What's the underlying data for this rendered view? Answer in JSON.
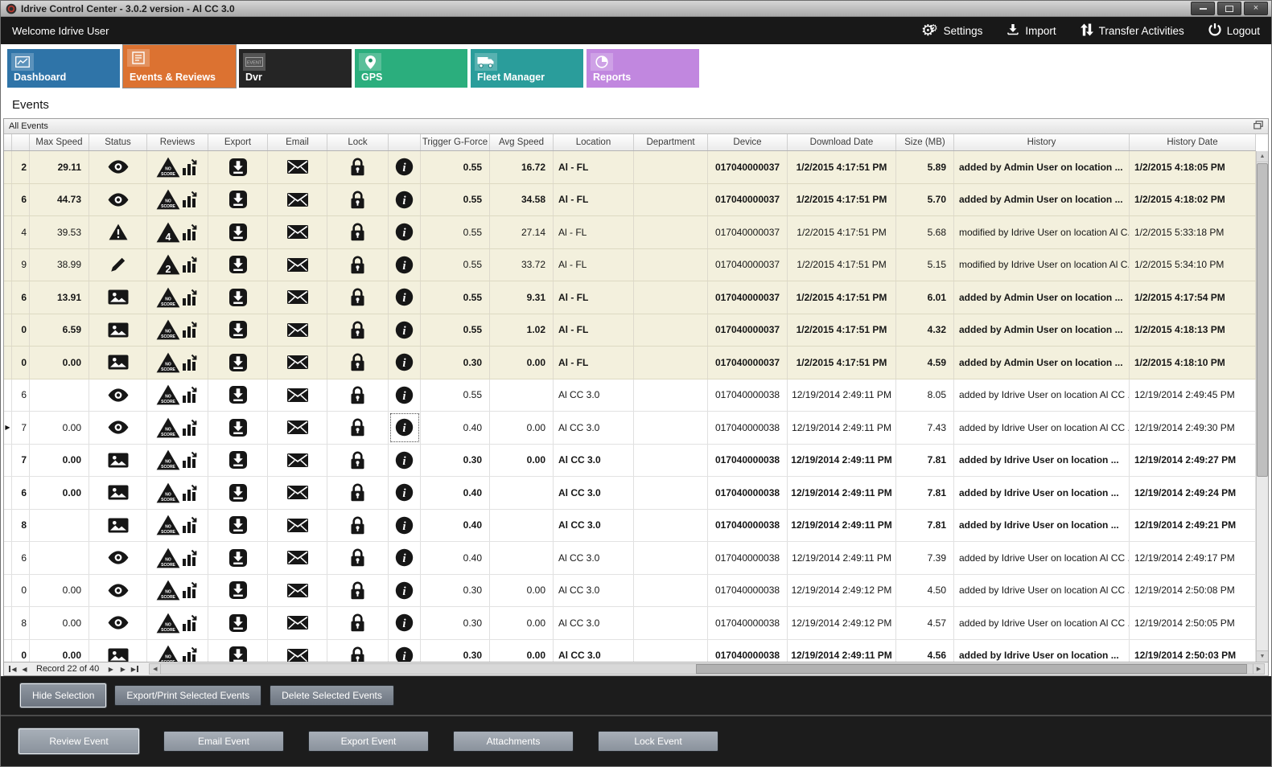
{
  "window": {
    "title": "Idrive Control Center - 3.0.2 version - Al CC 3.0"
  },
  "appbar": {
    "welcome": "Welcome Idrive User",
    "actions": [
      {
        "label": "Settings",
        "icon": "gear-icon"
      },
      {
        "label": "Import",
        "icon": "import-icon"
      },
      {
        "label": "Transfer Activities",
        "icon": "transfer-arrows-icon"
      },
      {
        "label": "Logout",
        "icon": "power-icon"
      }
    ]
  },
  "tabs": [
    {
      "label": "Dashboard",
      "color": "#2f74a8",
      "selected": false,
      "icon": "line-chart-icon"
    },
    {
      "label": "Events & Reviews",
      "color": "#dc7231",
      "selected": true,
      "icon": "event-list-icon"
    },
    {
      "label": "Dvr",
      "color": "#252525",
      "selected": false,
      "icon": "dvr-event-icon"
    },
    {
      "label": "GPS",
      "color": "#2bae7d",
      "selected": false,
      "icon": "map-pin-icon"
    },
    {
      "label": "Fleet Manager",
      "color": "#2a9d9b",
      "selected": false,
      "icon": "truck-icon"
    },
    {
      "label": "Reports",
      "color": "#c187df",
      "selected": false,
      "icon": "pie-chart-icon"
    }
  ],
  "section_title": "Events",
  "panel": {
    "title": "All Events"
  },
  "grid": {
    "row_tint_color": "#f3f0dd",
    "columns": [
      {
        "key": "",
        "label": ""
      },
      {
        "key": "",
        "label": ""
      },
      {
        "key": "max_speed",
        "label": "Max Speed"
      },
      {
        "key": "status",
        "label": "Status"
      },
      {
        "key": "reviews",
        "label": "Reviews"
      },
      {
        "key": "export",
        "label": "Export"
      },
      {
        "key": "email",
        "label": "Email"
      },
      {
        "key": "lock",
        "label": "Lock"
      },
      {
        "key": "info",
        "label": ""
      },
      {
        "key": "trigger_g_force",
        "label": "Trigger G-Force"
      },
      {
        "key": "avg_speed",
        "label": "Avg Speed"
      },
      {
        "key": "location",
        "label": "Location"
      },
      {
        "key": "department",
        "label": "Department"
      },
      {
        "key": "device",
        "label": "Device"
      },
      {
        "key": "download_date",
        "label": "Download Date"
      },
      {
        "key": "size_mb",
        "label": "Size (MB)"
      },
      {
        "key": "history",
        "label": "History"
      },
      {
        "key": "history_date",
        "label": "History Date"
      }
    ],
    "rows": [
      {
        "id": "2",
        "bold": true,
        "tint": true,
        "selected": false,
        "max_speed": "29.11",
        "status": "eye",
        "score": "NO SCORE",
        "trigger": "0.55",
        "avg_speed": "16.72",
        "location": "Al - FL",
        "department": "",
        "device": "017040000037",
        "download_date": "1/2/2015 4:17:51 PM",
        "size_mb": "5.89",
        "history": "added by Admin User on location ...",
        "history_date": "1/2/2015 4:18:05 PM"
      },
      {
        "id": "6",
        "bold": true,
        "tint": true,
        "selected": false,
        "max_speed": "44.73",
        "status": "eye",
        "score": "NO SCORE",
        "trigger": "0.55",
        "avg_speed": "34.58",
        "location": "Al - FL",
        "department": "",
        "device": "017040000037",
        "download_date": "1/2/2015 4:17:51 PM",
        "size_mb": "5.70",
        "history": "added by Admin User on location ...",
        "history_date": "1/2/2015 4:18:02 PM"
      },
      {
        "id": "4",
        "bold": false,
        "tint": true,
        "selected": false,
        "max_speed": "39.53",
        "status": "warning",
        "score": "4",
        "trigger": "0.55",
        "avg_speed": "27.14",
        "location": "Al - FL",
        "department": "",
        "device": "017040000037",
        "download_date": "1/2/2015 4:17:51 PM",
        "size_mb": "5.68",
        "history": "modified by Idrive User on location Al C...",
        "history_date": "1/2/2015 5:33:18 PM"
      },
      {
        "id": "9",
        "bold": false,
        "tint": true,
        "selected": false,
        "max_speed": "38.99",
        "status": "pencil",
        "score": "2",
        "trigger": "0.55",
        "avg_speed": "33.72",
        "location": "Al - FL",
        "department": "",
        "device": "017040000037",
        "download_date": "1/2/2015 4:17:51 PM",
        "size_mb": "5.15",
        "history": "modified by Idrive User on location Al C...",
        "history_date": "1/2/2015 5:34:10 PM"
      },
      {
        "id": "6",
        "bold": true,
        "tint": true,
        "selected": false,
        "max_speed": "13.91",
        "status": "picture",
        "score": "NO SCORE",
        "trigger": "0.55",
        "avg_speed": "9.31",
        "location": "Al - FL",
        "department": "",
        "device": "017040000037",
        "download_date": "1/2/2015 4:17:51 PM",
        "size_mb": "6.01",
        "history": "added by Admin User on location ...",
        "history_date": "1/2/2015 4:17:54 PM"
      },
      {
        "id": "0",
        "bold": true,
        "tint": true,
        "selected": false,
        "max_speed": "6.59",
        "status": "picture",
        "score": "NO SCORE",
        "trigger": "0.55",
        "avg_speed": "1.02",
        "location": "Al - FL",
        "department": "",
        "device": "017040000037",
        "download_date": "1/2/2015 4:17:51 PM",
        "size_mb": "4.32",
        "history": "added by Admin User on location ...",
        "history_date": "1/2/2015 4:18:13 PM"
      },
      {
        "id": "0",
        "bold": true,
        "tint": true,
        "selected": false,
        "max_speed": "0.00",
        "status": "picture",
        "score": "NO SCORE",
        "trigger": "0.30",
        "avg_speed": "0.00",
        "location": "Al - FL",
        "department": "",
        "device": "017040000037",
        "download_date": "1/2/2015 4:17:51 PM",
        "size_mb": "4.59",
        "history": "added by Admin User on location ...",
        "history_date": "1/2/2015 4:18:10 PM"
      },
      {
        "id": "6",
        "bold": false,
        "tint": false,
        "selected": false,
        "max_speed": "",
        "status": "eye",
        "score": "NO SCORE",
        "trigger": "0.55",
        "avg_speed": "",
        "location": "Al CC 3.0",
        "department": "",
        "device": "017040000038",
        "download_date": "12/19/2014 2:49:11 PM",
        "size_mb": "8.05",
        "history": "added by Idrive User on location Al CC ...",
        "history_date": "12/19/2014 2:49:45 PM"
      },
      {
        "id": "7",
        "bold": false,
        "tint": false,
        "selected": true,
        "max_speed": "0.00",
        "status": "eye",
        "score": "NO SCORE",
        "trigger": "0.40",
        "avg_speed": "0.00",
        "location": "Al CC 3.0",
        "department": "",
        "device": "017040000038",
        "download_date": "12/19/2014 2:49:11 PM",
        "size_mb": "7.43",
        "history": "added by Idrive User on location Al CC ...",
        "history_date": "12/19/2014 2:49:30 PM"
      },
      {
        "id": "7",
        "bold": true,
        "tint": false,
        "selected": false,
        "max_speed": "0.00",
        "status": "picture",
        "score": "NO SCORE",
        "trigger": "0.30",
        "avg_speed": "0.00",
        "location": "Al CC 3.0",
        "department": "",
        "device": "017040000038",
        "download_date": "12/19/2014 2:49:11 PM",
        "size_mb": "7.81",
        "history": "added by Idrive User on location ...",
        "history_date": "12/19/2014 2:49:27 PM"
      },
      {
        "id": "6",
        "bold": true,
        "tint": false,
        "selected": false,
        "max_speed": "0.00",
        "status": "picture",
        "score": "NO SCORE",
        "trigger": "0.40",
        "avg_speed": "",
        "location": "Al CC 3.0",
        "department": "",
        "device": "017040000038",
        "download_date": "12/19/2014 2:49:11 PM",
        "size_mb": "7.81",
        "history": "added by Idrive User on location ...",
        "history_date": "12/19/2014 2:49:24 PM"
      },
      {
        "id": "8",
        "bold": true,
        "tint": false,
        "selected": false,
        "max_speed": "",
        "status": "picture",
        "score": "NO SCORE",
        "trigger": "0.40",
        "avg_speed": "",
        "location": "Al CC 3.0",
        "department": "",
        "device": "017040000038",
        "download_date": "12/19/2014 2:49:11 PM",
        "size_mb": "7.81",
        "history": "added by Idrive User on location ...",
        "history_date": "12/19/2014 2:49:21 PM"
      },
      {
        "id": "6",
        "bold": false,
        "tint": false,
        "selected": false,
        "max_speed": "",
        "status": "eye",
        "score": "NO SCORE",
        "trigger": "0.40",
        "avg_speed": "",
        "location": "Al CC 3.0",
        "department": "",
        "device": "017040000038",
        "download_date": "12/19/2014 2:49:11 PM",
        "size_mb": "7.39",
        "history": "added by Idrive User on location Al CC ...",
        "history_date": "12/19/2014 2:49:17 PM"
      },
      {
        "id": "0",
        "bold": false,
        "tint": false,
        "selected": false,
        "max_speed": "0.00",
        "status": "eye",
        "score": "NO SCORE",
        "trigger": "0.30",
        "avg_speed": "0.00",
        "location": "Al CC 3.0",
        "department": "",
        "device": "017040000038",
        "download_date": "12/19/2014 2:49:12 PM",
        "size_mb": "4.50",
        "history": "added by Idrive User on location Al CC ...",
        "history_date": "12/19/2014 2:50:08 PM"
      },
      {
        "id": "8",
        "bold": false,
        "tint": false,
        "selected": false,
        "max_speed": "0.00",
        "status": "eye",
        "score": "NO SCORE",
        "trigger": "0.30",
        "avg_speed": "0.00",
        "location": "Al CC 3.0",
        "department": "",
        "device": "017040000038",
        "download_date": "12/19/2014 2:49:12 PM",
        "size_mb": "4.57",
        "history": "added by Idrive User on location Al CC ...",
        "history_date": "12/19/2014 2:50:05 PM"
      },
      {
        "id": "0",
        "bold": true,
        "tint": false,
        "selected": false,
        "max_speed": "0.00",
        "status": "picture",
        "score": "NO SCORE",
        "trigger": "0.30",
        "avg_speed": "0.00",
        "location": "Al CC 3.0",
        "department": "",
        "device": "017040000038",
        "download_date": "12/19/2014 2:49:11 PM",
        "size_mb": "4.56",
        "history": "added by Idrive User on location ...",
        "history_date": "12/19/2014 2:50:03 PM"
      }
    ]
  },
  "navigator": {
    "record_label": "Record 22 of 40"
  },
  "selection_bar": {
    "buttons": [
      {
        "label": "Hide Selection",
        "focused": true
      },
      {
        "label": "Export/Print Selected Events",
        "focused": false
      },
      {
        "label": "Delete Selected  Events",
        "focused": false
      }
    ]
  },
  "event_bar": {
    "buttons": [
      {
        "label": "Review Event",
        "focused": true
      },
      {
        "label": "Email Event",
        "focused": false
      },
      {
        "label": "Export Event",
        "focused": false
      },
      {
        "label": "Attachments",
        "focused": false
      },
      {
        "label": "Lock Event",
        "focused": false
      }
    ]
  }
}
